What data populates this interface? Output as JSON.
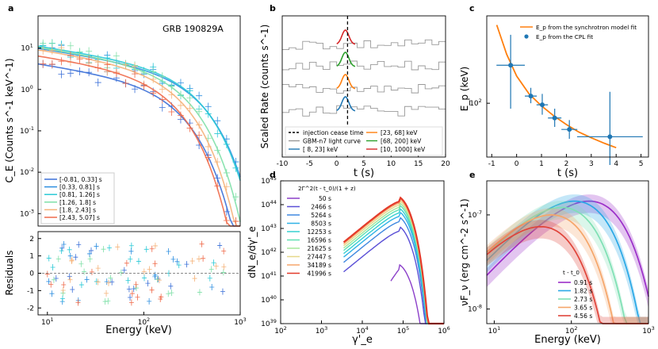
{
  "chart_data": [
    {
      "panel": "a",
      "type": "scatter",
      "annotation": "GRB 190829A",
      "xlabel": "Energy (keV)",
      "ylabel": "C_E (Counts s^-1 keV^-1)",
      "xlim": [
        8,
        1000
      ],
      "ylim": [
        0.0005,
        60
      ],
      "xticks": [
        "10^1",
        "10^2",
        "10^3"
      ],
      "yticks": [
        "10^-3",
        "10^-2",
        "10^-1",
        "10^0",
        "10^1"
      ],
      "series": [
        {
          "name": "[-0.81, 0.33] s",
          "color": "#3a6fd8",
          "peak": 3.2,
          "ep": 70
        },
        {
          "name": "[0.33, 0.81] s",
          "color": "#2e8fe0",
          "peak": 7.5,
          "ep": 110
        },
        {
          "name": "[0.81, 1.26] s",
          "color": "#29c9d6",
          "peak": 8.5,
          "ep": 105
        },
        {
          "name": "[1.26, 1.8] s",
          "color": "#7fe0a8",
          "peak": 8.0,
          "ep": 80
        },
        {
          "name": "[1.8, 2.43] s",
          "color": "#f5b37a",
          "peak": 7.0,
          "ep": 70
        },
        {
          "name": "[2.43, 5.07] s",
          "color": "#ef6a4a",
          "peak": 5.0,
          "ep": 60
        }
      ],
      "residuals": {
        "ylabel": "Residuals",
        "ylim": [
          -2.4,
          2.4
        ],
        "yticks": [
          "-2",
          "-1",
          "0",
          "1",
          "2"
        ]
      }
    },
    {
      "panel": "b",
      "type": "line",
      "xlabel": "t (s)",
      "ylabel": "Scaled Rate (counts s^-1)",
      "xlim": [
        -10,
        20
      ],
      "xticks": [
        "-10",
        "-5",
        "0",
        "5",
        "10",
        "15",
        "20"
      ],
      "injection_cease_time": 2,
      "legend": [
        {
          "label": "injection cease time",
          "color": "#000000",
          "style": "dashed"
        },
        {
          "label": "GBM-n7 light curve",
          "color": "#999999",
          "style": "solid"
        },
        {
          "label": "[ 8, 23] keV",
          "color": "#1f77b4",
          "style": "solid"
        },
        {
          "label": "[23, 68] keV",
          "color": "#ff7f0e",
          "style": "solid"
        },
        {
          "label": "[68, 200] keV",
          "color": "#2ca02c",
          "style": "solid"
        },
        {
          "label": "[10, 1000] keV",
          "color": "#d62728",
          "style": "solid"
        }
      ]
    },
    {
      "panel": "c",
      "type": "scatter",
      "xlabel": "t (s)",
      "ylabel": "E_p (keV)",
      "xlim": [
        -1.2,
        5.3
      ],
      "ylim": [
        35,
        550
      ],
      "xticks": [
        "-1",
        "0",
        "1",
        "2",
        "3",
        "4",
        "5"
      ],
      "yticks": [
        "10^2"
      ],
      "points": [
        {
          "t": -0.24,
          "ep": 210,
          "t_err": 0.57,
          "ep_lo": 90,
          "ep_hi": 380
        },
        {
          "t": 0.57,
          "ep": 115,
          "t_err": 0.24,
          "ep_lo": 100,
          "ep_hi": 135
        },
        {
          "t": 1.03,
          "ep": 97,
          "t_err": 0.23,
          "ep_lo": 80,
          "ep_hi": 120
        },
        {
          "t": 1.53,
          "ep": 75,
          "t_err": 0.27,
          "ep_lo": 63,
          "ep_hi": 90
        },
        {
          "t": 2.12,
          "ep": 60,
          "t_err": 0.32,
          "ep_lo": 50,
          "ep_hi": 72
        },
        {
          "t": 3.75,
          "ep": 52,
          "t_err": 1.32,
          "ep_lo": 30,
          "ep_hi": 125
        }
      ],
      "model_curve": {
        "t": [
          -0.8,
          -0.4,
          0,
          0.5,
          1,
          1.5,
          2,
          2.5,
          3,
          3.5,
          4
        ],
        "ep": [
          460,
          260,
          170,
          120,
          95,
          78,
          66,
          57,
          51,
          46,
          42
        ]
      },
      "legend": [
        {
          "label": "E_p from the synchrotron model fit",
          "color": "#ff7f0e"
        },
        {
          "label": "E_p from the CPL fit",
          "color": "#1f77b4"
        }
      ]
    },
    {
      "panel": "d",
      "type": "line",
      "xlabel": "γ'_e",
      "ylabel": "dN_e/dγ'_e",
      "xlim": [
        100,
        1000000
      ],
      "ylim": [
        1e+39,
        1e+45
      ],
      "xticks": [
        "10^2",
        "10^3",
        "10^4",
        "10^5",
        "10^6"
      ],
      "yticks": [
        "10^39",
        "10^40",
        "10^41",
        "10^42",
        "10^43",
        "10^44",
        "10^45"
      ],
      "legend_title": "2Γ^2(t - t_0)/(1 + z)",
      "series": [
        {
          "name": "50 s",
          "color": "#8b3fc9",
          "peak": 3e+41
        },
        {
          "name": "2466 s",
          "color": "#5a4fd6",
          "peak": 1.2e+43
        },
        {
          "name": "5264 s",
          "color": "#3f88e0",
          "peak": 3e+43
        },
        {
          "name": "8503 s",
          "color": "#2fb2e6",
          "peak": 5e+43
        },
        {
          "name": "12253 s",
          "color": "#35d0d0",
          "peak": 7e+43
        },
        {
          "name": "16596 s",
          "color": "#5ee0b4",
          "peak": 9.5e+43
        },
        {
          "name": "21625 s",
          "color": "#a6e89a",
          "peak": 1.2e+44
        },
        {
          "name": "27447 s",
          "color": "#e6d88a",
          "peak": 1.5e+44
        },
        {
          "name": "34189 s",
          "color": "#f7a66a",
          "peak": 1.8e+44
        },
        {
          "name": "41996 s",
          "color": "#e33a2a",
          "peak": 2.1e+44
        }
      ]
    },
    {
      "panel": "e",
      "type": "line",
      "xlabel": "Energy (keV)",
      "ylabel": "νF_ν (erg cm^-2 s^-1)",
      "xlim": [
        8,
        1000
      ],
      "ylim": [
        7e-09,
        2.3e-07
      ],
      "xticks": [
        "10^1",
        "10^2",
        "10^3"
      ],
      "yticks": [
        "10^-8",
        "10^-7"
      ],
      "legend_title": "t - t_0",
      "series": [
        {
          "name": "0.91 s",
          "color": "#9b2fc9",
          "peak": 1.4e-07,
          "ep": 170
        },
        {
          "name": "1.82 s",
          "color": "#2aa8e6",
          "peak": 1.4e-07,
          "ep": 110
        },
        {
          "name": "2.73 s",
          "color": "#7fe0b4",
          "peak": 1.2e-07,
          "ep": 75
        },
        {
          "name": "3.65 s",
          "color": "#f5a66a",
          "peak": 1e-07,
          "ep": 55
        },
        {
          "name": "4.56 s",
          "color": "#e0443a",
          "peak": 7.5e-08,
          "ep": 40
        }
      ]
    }
  ]
}
